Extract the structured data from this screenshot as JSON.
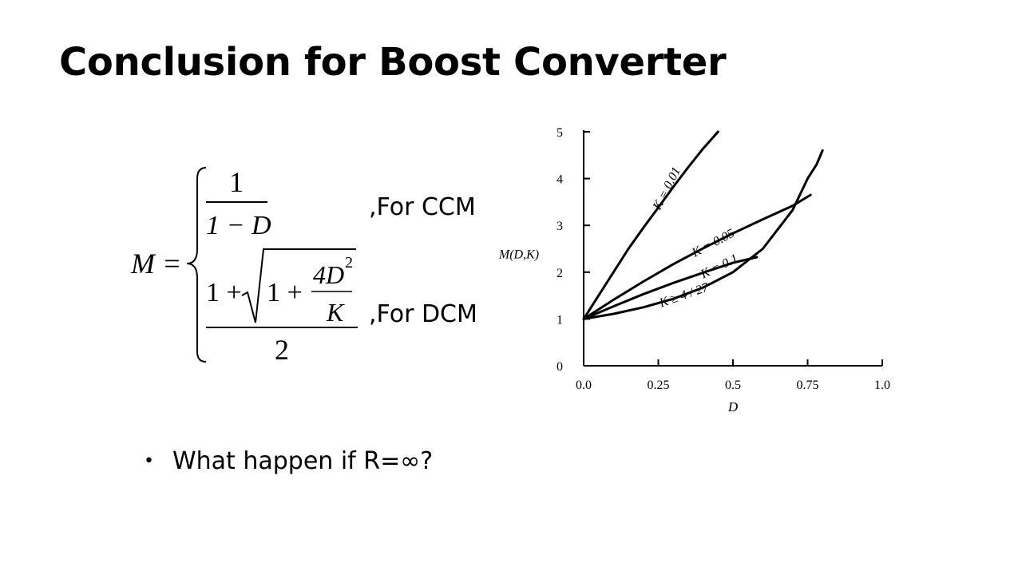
{
  "slide": {
    "title": "Conclusion for Boost Converter",
    "bullet": "What happen if R=∞?"
  },
  "formula": {
    "lhs": "M =",
    "ccm": {
      "numerator": "1",
      "denominator": "1 − D",
      "label": ",For CCM"
    },
    "dcm": {
      "one_plus": "1 +",
      "inner_one_plus": "1 +",
      "frac_num": "4D",
      "frac_exp": "2",
      "frac_den": "K",
      "denominator": "2",
      "label": ",For DCM"
    }
  },
  "chart_data": {
    "type": "line",
    "xlabel": "D",
    "ylabel": "M(D,K)",
    "xlim": [
      0,
      1.0
    ],
    "ylim": [
      0,
      5
    ],
    "xticks": [
      0.0,
      0.25,
      0.5,
      0.75,
      1.0
    ],
    "xtick_labels": [
      "0.0",
      "0.25",
      "0.5",
      "0.75",
      "1.0"
    ],
    "yticks": [
      0,
      1,
      2,
      3,
      4,
      5
    ],
    "ytick_labels": [
      "0",
      "1",
      "2",
      "3",
      "4",
      "5"
    ],
    "grid": false,
    "series": [
      {
        "name": "K = 0.01",
        "x": [
          0.0,
          0.05,
          0.1,
          0.15,
          0.2,
          0.25,
          0.3,
          0.35,
          0.4,
          0.45
        ],
        "y": [
          1.0,
          1.5,
          2.0,
          2.5,
          2.95,
          3.38,
          3.82,
          4.24,
          4.64,
          5.0
        ]
      },
      {
        "name": "K = 0.05",
        "x": [
          0.0,
          0.1,
          0.2,
          0.3,
          0.4,
          0.5,
          0.6,
          0.7,
          0.76
        ],
        "y": [
          1.0,
          1.41,
          1.8,
          2.17,
          2.51,
          2.83,
          3.13,
          3.42,
          3.65
        ]
      },
      {
        "name": "K = 0.1",
        "x": [
          0.0,
          0.1,
          0.2,
          0.3,
          0.4,
          0.5,
          0.58
        ],
        "y": [
          1.0,
          1.27,
          1.53,
          1.77,
          1.99,
          2.2,
          2.32
        ]
      },
      {
        "name": "K ≥ 4 / 27",
        "x": [
          0.0,
          0.1,
          0.2,
          0.3,
          0.4,
          0.5,
          0.6,
          0.7,
          0.75,
          0.78,
          0.8
        ],
        "y": [
          1.0,
          1.11,
          1.25,
          1.43,
          1.67,
          2.0,
          2.5,
          3.33,
          4.0,
          4.3,
          4.6
        ]
      }
    ]
  }
}
